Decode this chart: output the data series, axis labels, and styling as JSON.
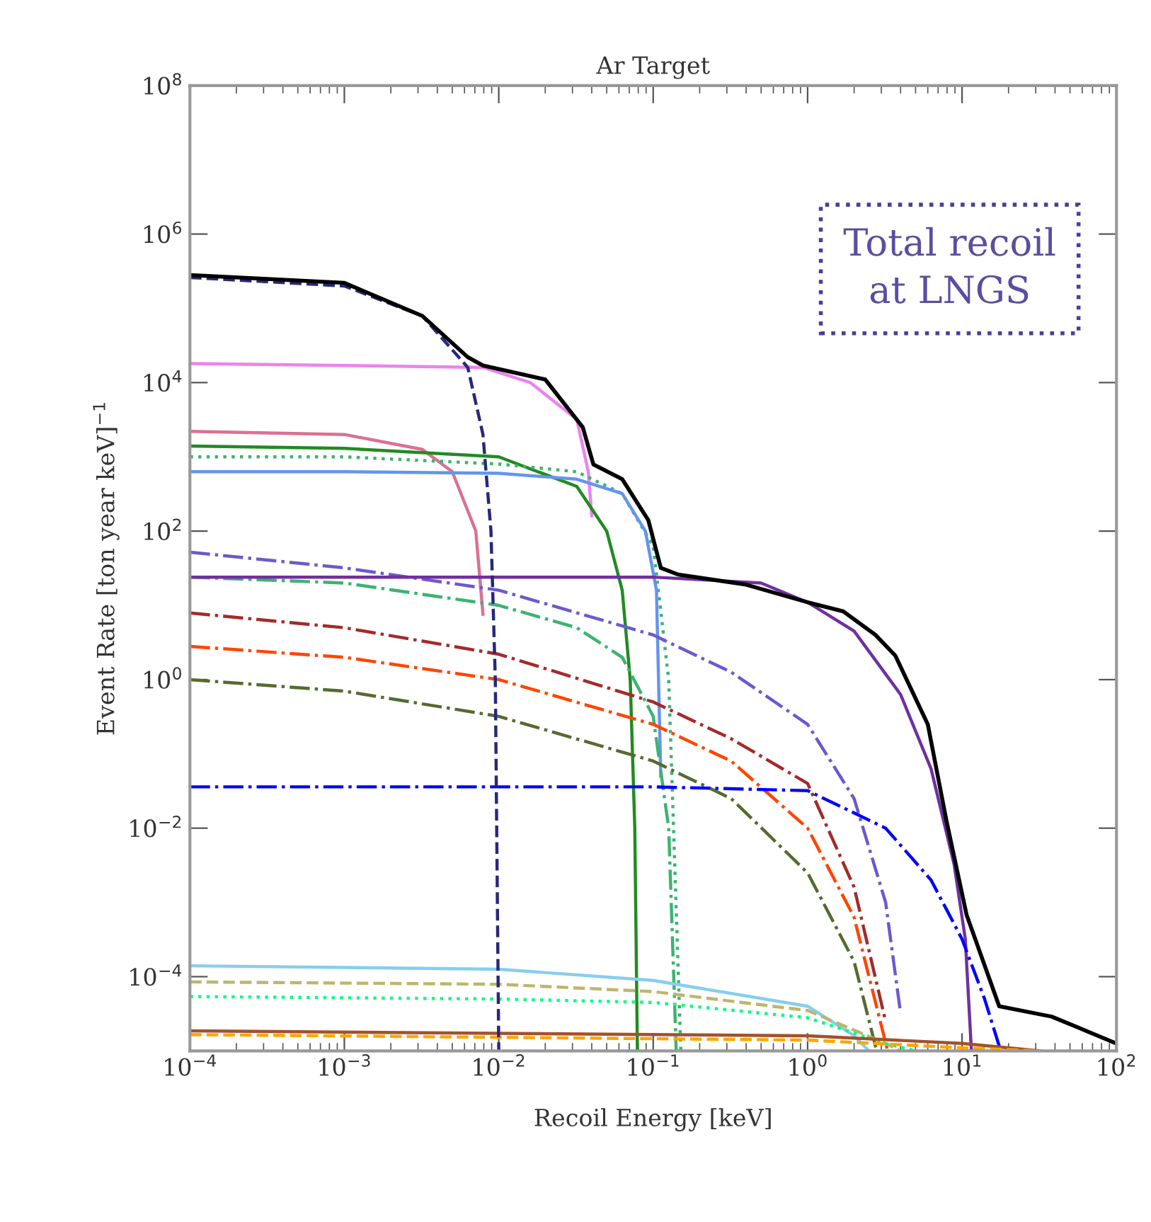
{
  "chart_data": {
    "type": "line",
    "title": "Ar Target",
    "xlabel": "Recoil Energy [keV]",
    "ylabel": "Event Rate [ton year keV]$^{−1}$",
    "annotations": [
      "Total recoil\nat LNGS"
    ],
    "log": "xy",
    "grid": false,
    "marker": "none",
    "xlim": [
      0.0001,
      100
    ],
    "ylim": [
      1e-05,
      100000000
    ],
    "xticks": [
      {
        "value": 0.0001,
        "label": "10$^{−4}$"
      },
      {
        "value": 0.001,
        "label": "10$^{−3}$"
      },
      {
        "value": 0.01,
        "label": "10$^{−2}$"
      },
      {
        "value": 0.1,
        "label": "10$^{−1}$"
      },
      {
        "value": 1,
        "label": "10$^{0}$"
      },
      {
        "value": 10,
        "label": "10$^{1}$"
      },
      {
        "value": 100,
        "label": "10$^{2}$"
      }
    ],
    "yticks": [
      {
        "value": 0.0001,
        "label": "10$^{−4}$"
      },
      {
        "value": 0.01,
        "label": "10$^{−2}$"
      },
      {
        "value": 1,
        "label": "10$^{0}$"
      },
      {
        "value": 100,
        "label": "10$^{2}$"
      },
      {
        "value": 10000,
        "label": "10$^{4}$"
      },
      {
        "value": 1000000,
        "label": "10$^{6}$"
      },
      {
        "value": 100000000,
        "label": "10$^{8}$"
      }
    ],
    "series": [
      {
        "color": "#ee82ee",
        "line_style": "solid",
        "x": [
          0.0001,
          0.001,
          0.0079,
          0.016,
          0.032,
          0.038,
          0.04
        ],
        "values": [
          18000.0,
          17000.0,
          16000.0,
          10000.0,
          3200.0,
          630,
          160
        ]
      },
      {
        "color": "#db7093",
        "line_style": "solid",
        "x": [
          0.0001,
          0.001,
          0.0032,
          0.005,
          0.0071,
          0.0079
        ],
        "values": [
          2200.0,
          2000.0,
          1260.0,
          630,
          100,
          7.6
        ]
      },
      {
        "color": "#228b22",
        "line_style": "solid",
        "x": [
          0.0001,
          0.001,
          0.01,
          0.032,
          0.05,
          0.063,
          0.071,
          0.076,
          0.079
        ],
        "values": [
          1400.0,
          1300.0,
          1000.0,
          400,
          100,
          16,
          1,
          0.01,
          1e-05
        ]
      },
      {
        "color": "#3cb371",
        "line_style": "dotted",
        "x": [
          0.0001,
          0.001,
          0.01,
          0.032,
          0.063,
          0.1,
          0.126,
          0.151
        ],
        "values": [
          1000.0,
          1000.0,
          800,
          630,
          320,
          63,
          1,
          1e-05
        ]
      },
      {
        "color": "#6495ed",
        "line_style": "solid",
        "x": [
          0.0001,
          0.001,
          0.01,
          0.032,
          0.063,
          0.089,
          0.105,
          0.112
        ],
        "values": [
          630,
          630,
          600,
          500,
          320,
          100,
          16,
          0.05
        ]
      },
      {
        "color": "#6a5acd",
        "line_style": "dashdot",
        "x": [
          0.0001,
          0.001,
          0.01,
          0.1,
          0.32,
          1,
          2,
          3.2,
          4
        ],
        "values": [
          52,
          32,
          16,
          4,
          1.26,
          0.25,
          0.025,
          0.001,
          3.2e-05
        ]
      },
      {
        "color": "#3cb371",
        "line_style": "dashdot",
        "x": [
          0.0001,
          0.001,
          0.01,
          0.032,
          0.063,
          0.1,
          0.126,
          0.141
        ],
        "values": [
          24,
          20,
          10,
          5,
          2,
          0.32,
          0.01,
          1e-05
        ]
      },
      {
        "color": "#7030a0",
        "line_style": "solid",
        "x": [
          0.0001,
          0.1,
          0.5,
          1,
          2,
          4,
          6.3,
          8.9,
          10.5,
          11.5
        ],
        "values": [
          24,
          24,
          20,
          11,
          4.5,
          0.63,
          0.063,
          0.0032,
          0.00032,
          1e-05
        ]
      },
      {
        "color": "#a52a2a",
        "line_style": "dashdot",
        "x": [
          0.0001,
          0.001,
          0.01,
          0.1,
          0.32,
          1,
          2,
          3.2
        ],
        "values": [
          7.9,
          5,
          2.2,
          0.5,
          0.16,
          0.04,
          0.0016,
          2.5e-05
        ]
      },
      {
        "color": "#ff4500",
        "line_style": "dashdot",
        "x": [
          0.0001,
          0.001,
          0.01,
          0.1,
          0.32,
          1,
          2,
          3.3
        ],
        "values": [
          2.8,
          2,
          1,
          0.25,
          0.08,
          0.01,
          0.00063,
          1e-05
        ]
      },
      {
        "color": "#556b2f",
        "line_style": "dashdot",
        "x": [
          0.0001,
          0.001,
          0.01,
          0.1,
          0.32,
          1,
          2,
          2.8
        ],
        "values": [
          1,
          0.7,
          0.32,
          0.08,
          0.025,
          0.0025,
          0.00016,
          1e-05
        ]
      },
      {
        "color": "#0000ff",
        "line_style": "dashdot",
        "x": [
          0.0001,
          0.1,
          1,
          3.2,
          6.3,
          10,
          14,
          17.8
        ],
        "values": [
          0.036,
          0.036,
          0.032,
          0.01,
          0.002,
          0.00032,
          5e-05,
          1e-05
        ]
      },
      {
        "color": "#87ceeb",
        "line_style": "solid",
        "x": [
          0.0001,
          0.01,
          0.1,
          1,
          2,
          2.5
        ],
        "values": [
          0.00014,
          0.000126,
          8.9e-05,
          4e-05,
          1.6e-05,
          1e-05
        ]
      },
      {
        "color": "#bdb76b",
        "line_style": "dashed",
        "x": [
          0.0001,
          0.01,
          0.1,
          1,
          3.2,
          4
        ],
        "values": [
          8.5e-05,
          7.9e-05,
          6.3e-05,
          3.5e-05,
          1.26e-05,
          1e-05
        ]
      },
      {
        "color": "#00ff7f",
        "line_style": "dotted",
        "x": [
          0.0001,
          0.01,
          0.1,
          1,
          3.2,
          5
        ],
        "values": [
          5.4e-05,
          5e-05,
          4.5e-05,
          2.8e-05,
          1.26e-05,
          1e-05
        ]
      },
      {
        "color": "#a0522d",
        "line_style": "solid",
        "x": [
          0.0001,
          1,
          10,
          32
        ],
        "values": [
          1.86e-05,
          1.6e-05,
          1.26e-05,
          1e-05
        ]
      },
      {
        "color": "#ffa500",
        "line_style": "dashed",
        "x": [
          0.0001,
          1,
          10,
          32
        ],
        "values": [
          1.66e-05,
          1.4e-05,
          1.1e-05,
          1e-05
        ]
      },
      {
        "color": "#27287a",
        "line_style": "dashed",
        "x": [
          0.0001,
          0.001,
          0.0032,
          0.0063,
          0.0079,
          0.0089,
          0.0095,
          0.01
        ],
        "values": [
          260000.0,
          200000.0,
          79000.0,
          16000.0,
          2000.0,
          100,
          1,
          1e-05
        ]
      },
      {
        "color": "#000000",
        "line_style": "solid",
        "x": [
          0.0001,
          0.001,
          0.0032,
          0.0063,
          0.0079,
          0.02,
          0.035,
          0.041,
          0.063,
          0.093,
          0.112,
          0.145,
          0.4,
          1,
          1.7,
          2.75,
          3.7,
          6,
          7.9,
          10.7,
          17.4,
          38,
          100
        ],
        "values": [
          280000.0,
          220000.0,
          79000.0,
          22000.0,
          17000.0,
          11000.0,
          2500.0,
          790,
          500,
          140,
          32,
          26,
          19,
          11,
          8.3,
          4,
          2.1,
          0.25,
          0.013,
          0.00068,
          4e-05,
          2.9e-05,
          1.26e-05
        ]
      }
    ]
  }
}
